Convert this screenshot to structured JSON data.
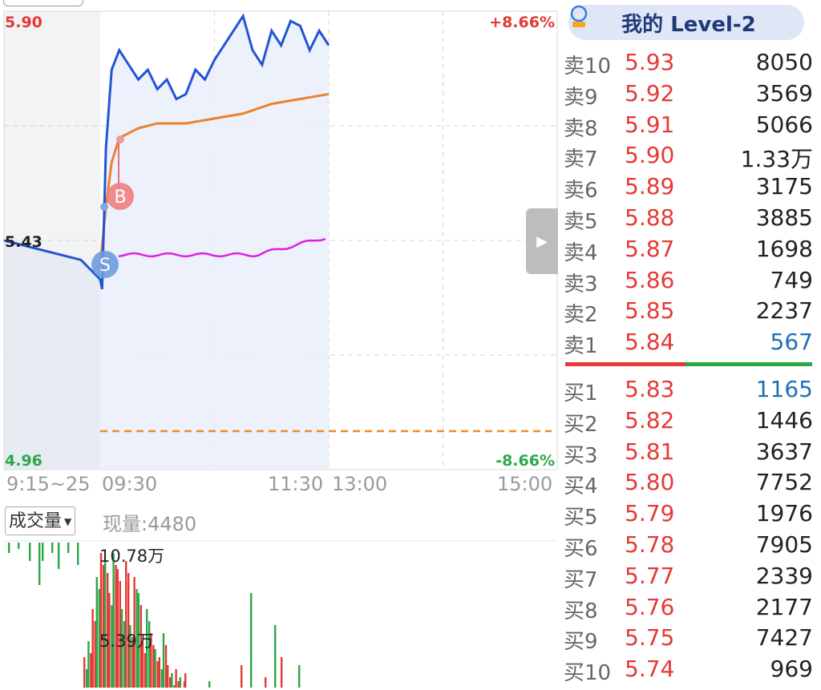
{
  "price_axis": {
    "high": "5.90",
    "prev_close": "5.43",
    "low": "4.96",
    "high_pct": "+8.66%",
    "low_pct": "-8.66%"
  },
  "time_axis": [
    "9:15~25",
    "09:30",
    "11:30",
    "13:00",
    "15:00"
  ],
  "markers": {
    "buy": "B",
    "sell": "S"
  },
  "volume": {
    "selector_label": "成交量",
    "current_label": "现量:4480",
    "max_label": "10.78万",
    "mid_label": "5.39万"
  },
  "orderbook": {
    "title": "我的 Level-2",
    "asks": [
      {
        "label": "卖10",
        "price": "5.93",
        "vol": "8050"
      },
      {
        "label": "卖9",
        "price": "5.92",
        "vol": "3569"
      },
      {
        "label": "卖8",
        "price": "5.91",
        "vol": "5066"
      },
      {
        "label": "卖7",
        "price": "5.90",
        "vol": "1.33万"
      },
      {
        "label": "卖6",
        "price": "5.89",
        "vol": "3175"
      },
      {
        "label": "卖5",
        "price": "5.88",
        "vol": "3885"
      },
      {
        "label": "卖4",
        "price": "5.87",
        "vol": "1698"
      },
      {
        "label": "卖3",
        "price": "5.86",
        "vol": "749"
      },
      {
        "label": "卖2",
        "price": "5.85",
        "vol": "2237"
      },
      {
        "label": "卖1",
        "price": "5.84",
        "vol": "567"
      }
    ],
    "bids": [
      {
        "label": "买1",
        "price": "5.83",
        "vol": "1165"
      },
      {
        "label": "买2",
        "price": "5.82",
        "vol": "1446"
      },
      {
        "label": "买3",
        "price": "5.81",
        "vol": "3637"
      },
      {
        "label": "买4",
        "price": "5.80",
        "vol": "7752"
      },
      {
        "label": "买5",
        "price": "5.79",
        "vol": "1976"
      },
      {
        "label": "买6",
        "price": "5.78",
        "vol": "7905"
      },
      {
        "label": "买7",
        "price": "5.77",
        "vol": "2339"
      },
      {
        "label": "买8",
        "price": "5.76",
        "vol": "2177"
      },
      {
        "label": "买9",
        "price": "5.75",
        "vol": "7427"
      },
      {
        "label": "买10",
        "price": "5.74",
        "vol": "969"
      }
    ]
  },
  "colors": {
    "up": "#e53935",
    "down": "#2aa84a",
    "price_line": "#2255d4",
    "avg_line": "#e8822e",
    "magenta_line": "#e020e0",
    "highlight_vol": "#1e6fb8"
  },
  "chart_data": {
    "type": "line",
    "ylim": [
      4.96,
      5.9
    ],
    "series": [
      {
        "x": [
          "9:25",
          "9:27",
          "9:29",
          "9:30",
          "9:31",
          "9:33",
          "9:36",
          "9:40",
          "9:45",
          "9:50",
          "9:55",
          "10:00",
          "10:05",
          "10:10",
          "10:15",
          "10:20",
          "10:25",
          "10:30",
          "10:35",
          "10:40",
          "10:45",
          "10:50",
          "10:55",
          "11:00",
          "11:05",
          "11:10",
          "11:15",
          "11:20",
          "11:25",
          "11:30"
        ],
        "values": [
          5.43,
          5.41,
          5.39,
          5.35,
          5.33,
          5.62,
          5.78,
          5.82,
          5.79,
          5.76,
          5.78,
          5.74,
          5.76,
          5.72,
          5.73,
          5.78,
          5.76,
          5.8,
          5.83,
          5.86,
          5.89,
          5.82,
          5.79,
          5.86,
          5.83,
          5.88,
          5.87,
          5.82,
          5.86,
          5.83
        ]
      },
      {
        "x": [
          "9:30",
          "9:33",
          "9:36",
          "9:40",
          "9:50",
          "10:00",
          "10:15",
          "10:30",
          "10:45",
          "11:00",
          "11:15",
          "11:30"
        ],
        "values": [
          5.38,
          5.5,
          5.59,
          5.64,
          5.66,
          5.67,
          5.67,
          5.68,
          5.69,
          5.71,
          5.72,
          5.73
        ]
      }
    ]
  }
}
